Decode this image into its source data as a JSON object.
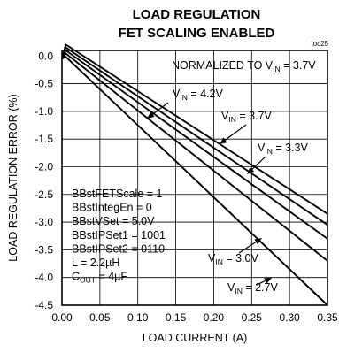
{
  "chart_data": {
    "type": "line",
    "title": "LOAD REGULATION",
    "subtitle": "FET SCALING ENABLED",
    "figure_id": "toc25",
    "xlabel": "LOAD CURRENT (A)",
    "ylabel": "LOAD REGULATION ERROR (%)",
    "xlim": [
      0,
      0.35
    ],
    "ylim": [
      -4.5,
      0.1
    ],
    "xticks": [
      "0.00",
      "0.05",
      "0.10",
      "0.15",
      "0.20",
      "0.25",
      "0.30",
      "0.35"
    ],
    "yticks": [
      "0.0",
      "-0.5",
      "-1.0",
      "-1.5",
      "-2.0",
      "-2.5",
      "-3.0",
      "-3.5",
      "-4.0",
      "-4.5"
    ],
    "grid": true,
    "normalized_note": {
      "text": "NORMALIZED TO V",
      "sub": "IN",
      "tail": " = 3.7V"
    },
    "conditions": [
      {
        "text": "BBstFETScale = 1",
        "sub": "",
        "tail": ""
      },
      {
        "text": "BBstIntegEn = 0",
        "sub": "",
        "tail": ""
      },
      {
        "text": "BBstVSet = 5.0V",
        "sub": "",
        "tail": ""
      },
      {
        "text": "BBstIPSet1 = 1001",
        "sub": "",
        "tail": ""
      },
      {
        "text": "BBstIPSet2 = 0110",
        "sub": "",
        "tail": ""
      },
      {
        "text": "L = 2.2µH",
        "sub": "",
        "tail": ""
      },
      {
        "text": "C",
        "sub": "OUT",
        "tail": " = 4µF"
      }
    ],
    "series": [
      {
        "label": {
          "text": "V",
          "sub": "IN",
          "tail": " = 4.2V"
        },
        "x": [
          0,
          0.35
        ],
        "y": [
          0.05,
          -2.85
        ]
      },
      {
        "label": {
          "text": "V",
          "sub": "IN",
          "tail": " = 3.7V"
        },
        "x": [
          0,
          0.35
        ],
        "y": [
          0.0,
          -3.05
        ]
      },
      {
        "label": {
          "text": "V",
          "sub": "IN",
          "tail": " = 3.3V"
        },
        "x": [
          0,
          0.35
        ],
        "y": [
          -0.05,
          -3.3
        ]
      },
      {
        "label": {
          "text": "V",
          "sub": "IN",
          "tail": " = 3.0V"
        },
        "x": [
          0,
          0.35
        ],
        "y": [
          -0.1,
          -3.7
        ]
      },
      {
        "label": {
          "text": "V",
          "sub": "IN",
          "tail": " = 2.7V"
        },
        "x": [
          0,
          0.35
        ],
        "y": [
          -0.15,
          -4.5
        ]
      }
    ]
  }
}
